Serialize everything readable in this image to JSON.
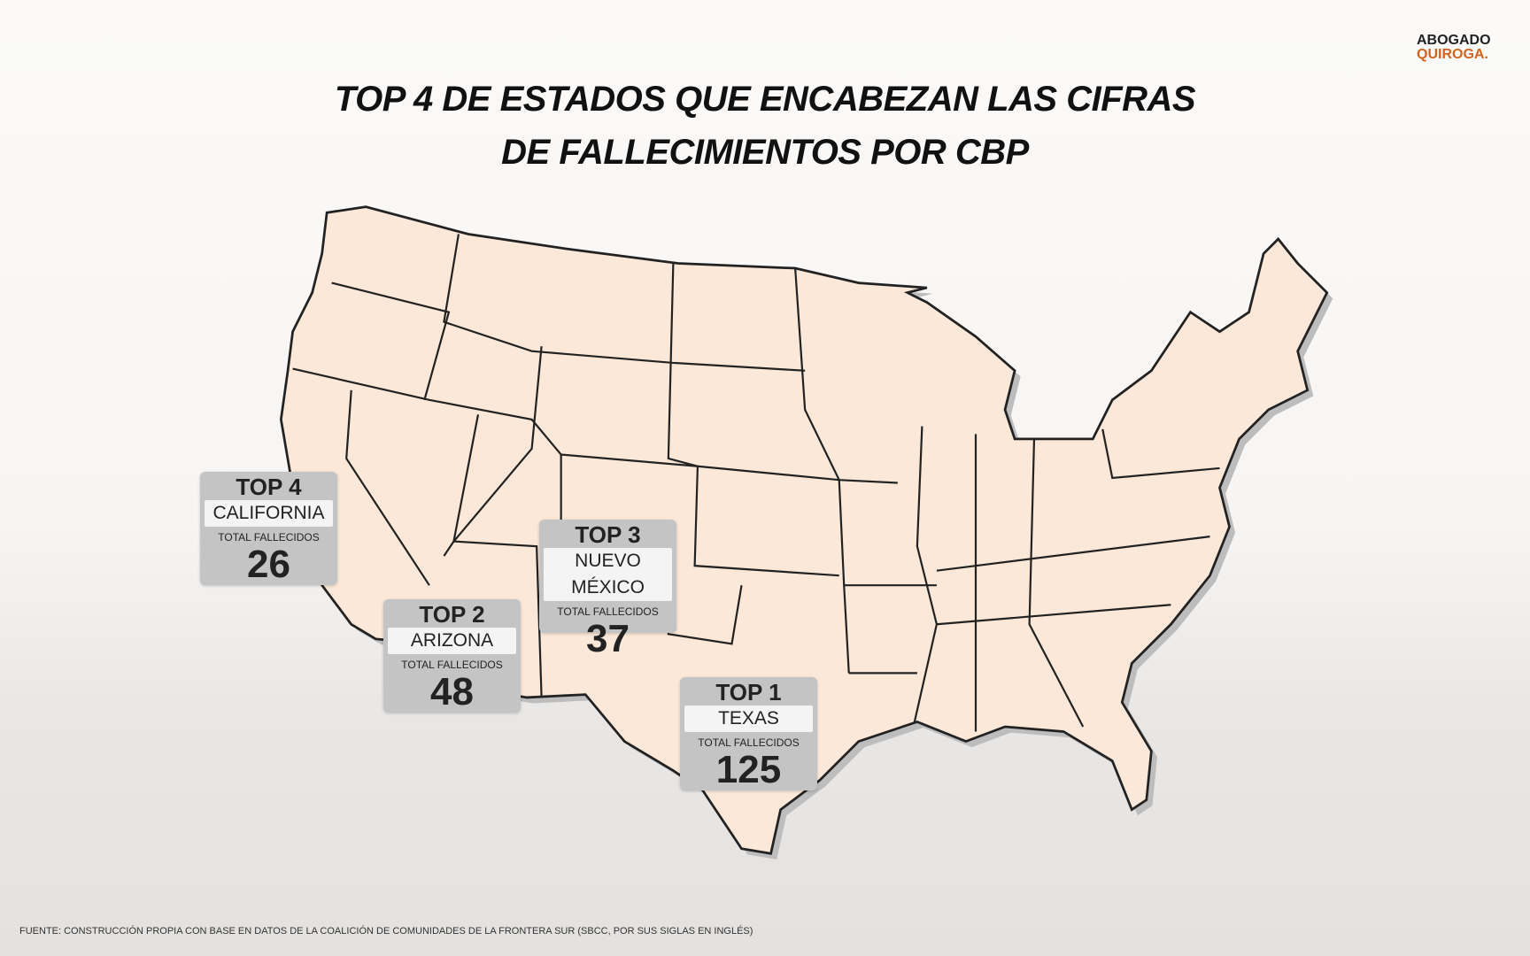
{
  "logo": {
    "line1": "ABOGADO",
    "line2": "QUIROGA."
  },
  "title": {
    "lines": [
      "TOP 4 DE ESTADOS QUE ENCABEZAN LAS CIFRAS",
      "DE FALLECIMIENTOS POR CBP"
    ]
  },
  "cards": [
    {
      "rank": "TOP 4",
      "state": "CALIFORNIA",
      "label": "TOTAL FALLECIDOS",
      "value": 26
    },
    {
      "rank": "TOP 2",
      "state": "ARIZONA",
      "label": "TOTAL FALLECIDOS",
      "value": 48
    },
    {
      "rank": "TOP 3",
      "state": "NUEVO MÉXICO",
      "label": "TOTAL FALLECIDOS",
      "value": 37
    },
    {
      "rank": "TOP 1",
      "state": "TEXAS",
      "label": "TOTAL FALLECIDOS",
      "value": 125
    }
  ],
  "source": "FUENTE: CONSTRUCCIÓN PROPIA CON BASE EN DATOS DE LA COALICIÓN DE COMUNIDADES DE LA FRONTERA SUR (SBCC, POR SUS SIGLAS EN INGLÉS)"
}
